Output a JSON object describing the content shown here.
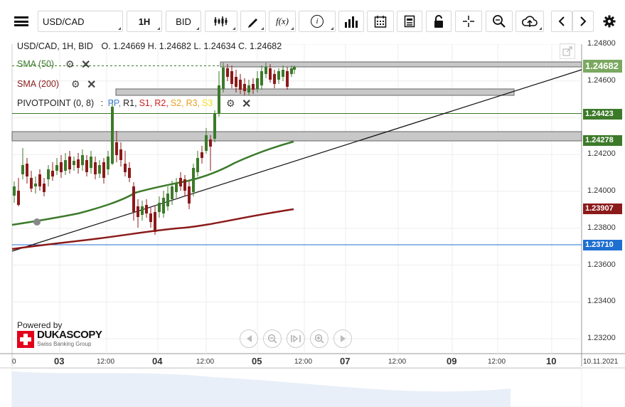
{
  "toolbar": {
    "symbol": "USD/CAD",
    "timeframe": "1H",
    "price_side": "BID",
    "fx_label": "f(x)",
    "info_label": "i"
  },
  "legend": {
    "instrument_line": "USD/CAD, 1H, BID",
    "ohlc": {
      "o": "O. 1.24669",
      "h": "H. 1.24682",
      "l": "L. 1.24634",
      "c": "C. 1.24682"
    },
    "sma50_label": "SMA (50)",
    "sma200_label": "SMA (200)",
    "pivot_label": "PIVOTPOINT (0, 8)",
    "pivot_sep": ":",
    "pivot_levels": [
      {
        "text": "PP",
        "color": "#3b7fd6"
      },
      {
        "text": "R1",
        "color": "#222222"
      },
      {
        "text": "S1",
        "color": "#cc2222"
      },
      {
        "text": "R2",
        "color": "#cc2222"
      },
      {
        "text": "S2",
        "color": "#e8a020"
      },
      {
        "text": "R3",
        "color": "#e8a020"
      },
      {
        "text": "S3",
        "color": "#f0e020"
      }
    ]
  },
  "price_axis": {
    "ticks": [
      "1.24800",
      "1.24600",
      "1.24200",
      "1.24000",
      "1.23800",
      "1.23600",
      "1.23400",
      "1.23200"
    ],
    "tags": [
      {
        "text": "1.24682",
        "color": "#7aa860",
        "kind": "current"
      },
      {
        "text": "1.24423",
        "color": "#3c7a2a",
        "kind": "level"
      },
      {
        "text": "1.24278",
        "color": "#3c7a2a",
        "kind": "level"
      },
      {
        "text": "1.23907",
        "color": "#8b1a1a",
        "kind": "sma200"
      },
      {
        "text": "1.23710",
        "color": "#1f6fd1",
        "kind": "level"
      }
    ]
  },
  "time_axis": {
    "labels": [
      {
        "text": "0",
        "bold": false
      },
      {
        "text": "03",
        "bold": true
      },
      {
        "text": "12:00",
        "bold": false
      },
      {
        "text": "04",
        "bold": true
      },
      {
        "text": "12:00",
        "bold": false
      },
      {
        "text": "05",
        "bold": true
      },
      {
        "text": "12:00",
        "bold": false
      },
      {
        "text": "07",
        "bold": true
      },
      {
        "text": "12:00",
        "bold": false
      },
      {
        "text": "09",
        "bold": true
      },
      {
        "text": "12:00",
        "bold": false
      },
      {
        "text": "10",
        "bold": true
      },
      {
        "text": "10.11.2021",
        "bold": false
      }
    ]
  },
  "branding": {
    "powered_by": "Powered by",
    "logo_text": "DUKASCOPY",
    "logo_subtitle": "Swiss Banking Group"
  },
  "colors": {
    "sma50": "#3c7a2a",
    "sma200": "#8b1a1a",
    "up": "#3c7a2a",
    "down": "#8b1a1a",
    "trendline": "#111111",
    "blue_level": "#1f6fd1"
  }
}
